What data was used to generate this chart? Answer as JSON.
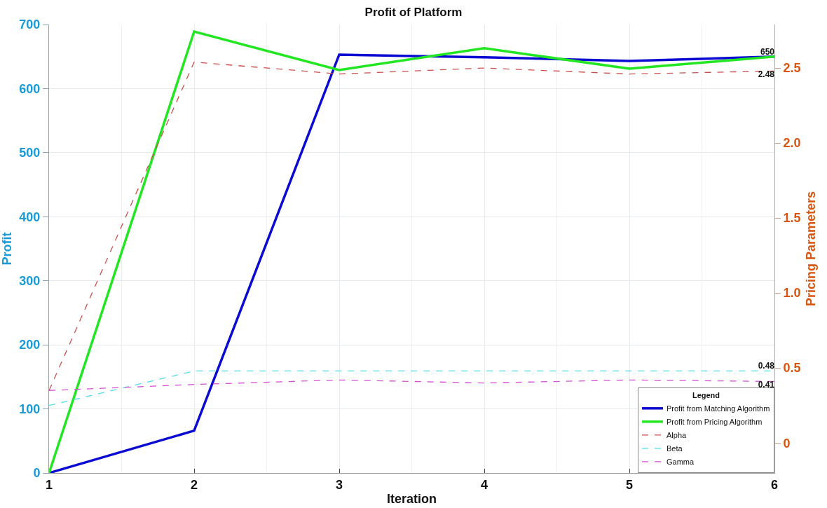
{
  "chart_data": {
    "type": "line",
    "title": "Profit of Platform",
    "xlabel": "Iteration",
    "ylabel": "Profit",
    "y2label": "Pricing Parameters",
    "legend_title": "Legend",
    "x": [
      1,
      2,
      3,
      4,
      5,
      6
    ],
    "series": [
      {
        "name": "Profit from Matching Algorithm",
        "color": "#0a0ad2",
        "values": [
          0,
          66,
          653,
          649,
          643,
          650
        ],
        "line_style": "solid",
        "value_labels": [
          null,
          null,
          null,
          null,
          null,
          "650"
        ]
      },
      {
        "name": "Profit from Pricing Algorithm",
        "color": "#22e622",
        "values": [
          0,
          689,
          629,
          663,
          631,
          650
        ],
        "line_style": "solid"
      },
      {
        "name": "Alpha",
        "color": "#c85050",
        "values": [
          0.35,
          2.54,
          2.46,
          2.5,
          2.46,
          2.48
        ],
        "line_style": "dashed",
        "axis": "y2",
        "value_labels": [
          null,
          null,
          null,
          null,
          null,
          "2.48"
        ]
      },
      {
        "name": "Beta",
        "color": "#50dce6",
        "values": [
          0.25,
          0.48,
          0.48,
          0.48,
          0.48,
          0.48
        ],
        "line_style": "dashed",
        "axis": "y2",
        "value_labels": [
          null,
          null,
          null,
          null,
          null,
          "0.48"
        ]
      },
      {
        "name": "Gamma",
        "color": "#d250d2",
        "values": [
          0.35,
          0.39,
          0.42,
          0.4,
          0.42,
          0.41
        ],
        "line_style": "dashed",
        "axis": "y2",
        "value_labels": [
          null,
          null,
          null,
          null,
          null,
          "0.41"
        ]
      }
    ],
    "xlim": [
      1,
      6
    ],
    "xticks": [
      1,
      2,
      3,
      4,
      5,
      6
    ],
    "ylim": [
      0,
      700
    ],
    "yticks": [
      0,
      100,
      200,
      300,
      400,
      500,
      600,
      700
    ],
    "y2lim": [
      -0.2,
      2.79
    ],
    "y2ticks": [
      0,
      {
        "value": 0.5,
        "label": "0.5"
      },
      {
        "value": 1,
        "label": "1.0"
      },
      {
        "value": 1.5,
        "label": "1.5"
      },
      {
        "value": 2,
        "label": "2.0"
      },
      {
        "value": 2.5,
        "label": "2.5"
      }
    ],
    "grid": true,
    "legend": "bottom right",
    "marker": "none"
  }
}
